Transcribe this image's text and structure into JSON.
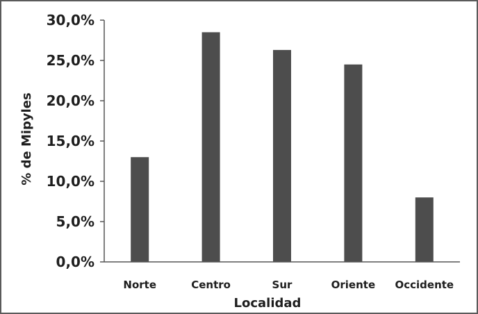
{
  "chart_data": {
    "type": "bar",
    "title": "",
    "xlabel": "Localidad",
    "ylabel": "% de Mipyles",
    "categories": [
      "Norte",
      "Centro",
      "Sur",
      "Oriente",
      "Occidente"
    ],
    "values": [
      13.0,
      28.5,
      26.3,
      24.5,
      8.0
    ],
    "ylim": [
      0,
      30
    ],
    "yticks": [
      0,
      5,
      10,
      15,
      20,
      25,
      30
    ],
    "ytick_labels": [
      "0,0%",
      "5,0%",
      "10,0%",
      "15,0%",
      "20,0%",
      "25,0%",
      "30,0%"
    ],
    "grid": false,
    "legend": "none",
    "bar_color": "#4d4d4d",
    "axis_color": "#555555"
  }
}
